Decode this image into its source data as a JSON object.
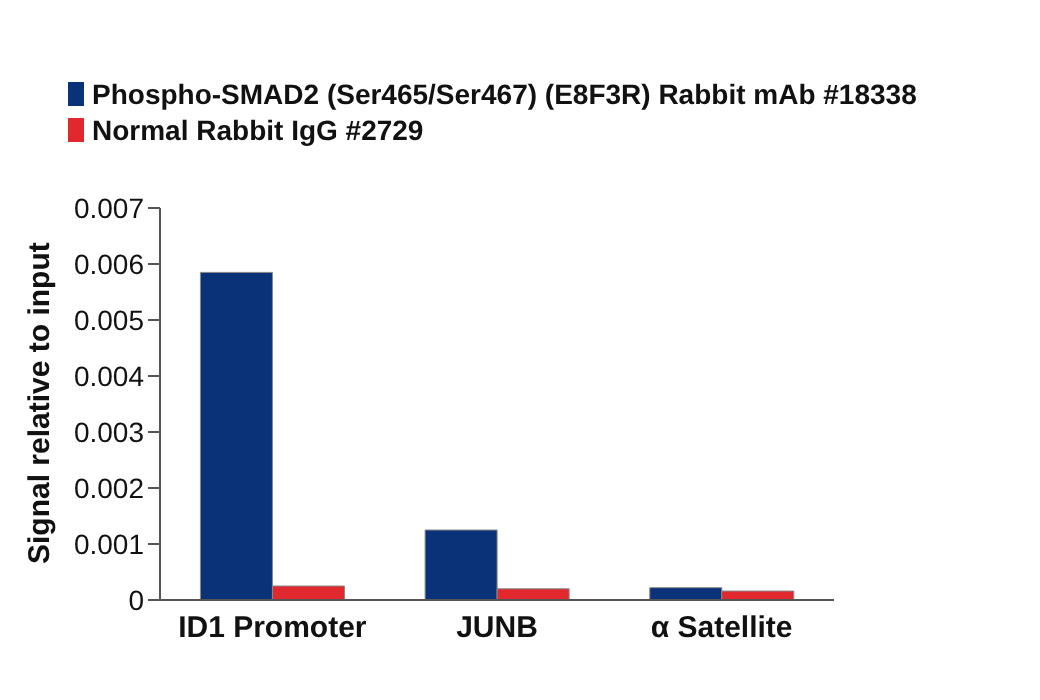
{
  "chart_data": {
    "type": "bar",
    "categories": [
      "ID1 Promoter",
      "JUNB",
      "α Satellite"
    ],
    "series": [
      {
        "name": "Phospho-SMAD2 (Ser465/Ser467) (E8F3R) Rabbit mAb #18338",
        "color": "#0a3278",
        "values": [
          0.00585,
          0.00125,
          0.00022
        ]
      },
      {
        "name": "Normal Rabbit IgG #2729",
        "color": "#e0282e",
        "values": [
          0.00025,
          0.0002,
          0.00016
        ]
      }
    ],
    "ylabel": "Signal relative to input",
    "ylim": [
      0,
      0.007
    ],
    "yticks": [
      0,
      0.001,
      0.002,
      0.003,
      0.004,
      0.005,
      0.006,
      0.007
    ],
    "legend": "top left"
  }
}
